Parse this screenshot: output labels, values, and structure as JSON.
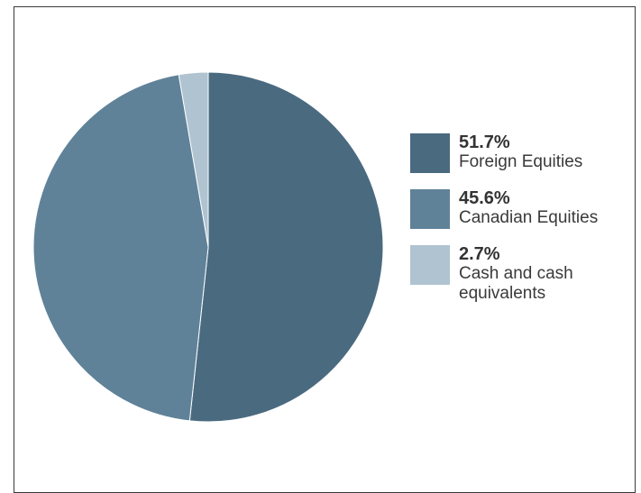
{
  "chart_data": {
    "type": "pie",
    "slices": [
      {
        "label": "Foreign Equities",
        "value": 51.7,
        "value_label": "51.7%",
        "color": "#4a6a80"
      },
      {
        "label": "Canadian Equities",
        "value": 45.6,
        "value_label": "45.6%",
        "color": "#5f8299"
      },
      {
        "label": "Cash and cash equivalents",
        "value": 2.7,
        "value_label": "2.7%",
        "color": "#b0c3d1"
      }
    ],
    "start_angle": "top",
    "direction": "clockwise",
    "legend_position": "right"
  }
}
